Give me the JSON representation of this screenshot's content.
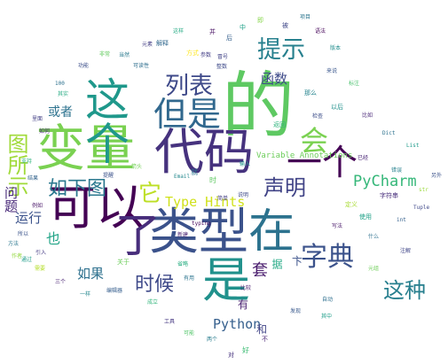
{
  "words": [
    {
      "text": "的",
      "color": "#5ec962"
    },
    {
      "text": "变量",
      "color": "#7ad151"
    },
    {
      "text": "代码",
      "color": "#46327e"
    },
    {
      "text": "可以",
      "color": "#440154"
    },
    {
      "text": "类型",
      "color": "#3b528b"
    },
    {
      "text": "在",
      "color": "#2c728e"
    },
    {
      "text": "是",
      "color": "#21918c"
    },
    {
      "text": "了",
      "color": "#472d7b"
    },
    {
      "text": "这个",
      "color": "#1f988b"
    },
    {
      "text": "一个",
      "color": "#440154"
    },
    {
      "text": "但是",
      "color": "#31688e"
    },
    {
      "text": "提示",
      "color": "#27808e"
    },
    {
      "text": "会",
      "color": "#7ad151"
    },
    {
      "text": "列表",
      "color": "#3e4989"
    },
    {
      "text": "图所示",
      "color": "#a0da39"
    },
    {
      "text": "字典",
      "color": "#3b528b"
    },
    {
      "text": "如下图",
      "color": "#2a788e"
    },
    {
      "text": "它",
      "color": "#bddf26"
    },
    {
      "text": "声明",
      "color": "#414487"
    },
    {
      "text": "PyCharm",
      "color": "#35b779"
    },
    {
      "text": "Type Hints",
      "color": "#d0e11c"
    },
    {
      "text": "这种",
      "color": "#277f8e"
    },
    {
      "text": "时候",
      "color": "#3e4989"
    },
    {
      "text": "Python",
      "color": "#355f8d"
    },
    {
      "text": "套",
      "color": "#481a6c"
    },
    {
      "text": "函数",
      "color": "#3e4a89"
    },
    {
      "text": "或者",
      "color": "#2c728e"
    },
    {
      "text": "问题",
      "color": "#472878"
    },
    {
      "text": "运行",
      "color": "#3b528b"
    },
    {
      "text": "也",
      "color": "#20a386"
    },
    {
      "text": "如果",
      "color": "#2d708e"
    },
    {
      "text": "有",
      "color": "#481f70"
    },
    {
      "text": "和",
      "color": "#414487"
    },
    {
      "text": "Variable Annotations",
      "color": "#6ccd5a"
    },
    {
      "text": "卞",
      "color": "#3b528b"
    },
    {
      "text": "据",
      "color": "#22a884"
    },
    {
      "text": "关于",
      "color": "#6ccd5a"
    },
    {
      "text": "解释",
      "color": "#31688e"
    },
    {
      "text": "方式",
      "color": "#fde725"
    },
    {
      "text": "字符串",
      "color": "#472d7b"
    },
    {
      "text": "比较",
      "color": "#481b6d"
    },
    {
      "text": "就",
      "color": "#2a768e"
    },
    {
      "text": "那么",
      "color": "#25848e"
    },
    {
      "text": "以后",
      "color": "#21918c"
    },
    {
      "text": "整数",
      "color": "#3e4a89"
    },
    {
      "text": "参数",
      "color": "#433e85"
    },
    {
      "text": "返回",
      "color": "#2fb47c"
    },
    {
      "text": "检查",
      "color": "#3d4e8a"
    },
    {
      "text": "错误",
      "color": "#26818e"
    },
    {
      "text": "定义",
      "color": "#a8db34"
    },
    {
      "text": "使用",
      "color": "#1fa187"
    },
    {
      "text": "写法",
      "color": "#48186a"
    },
    {
      "text": "什么",
      "color": "#2d708e"
    },
    {
      "text": "注解",
      "color": "#404688"
    },
    {
      "text": "元组",
      "color": "#6ece58"
    },
    {
      "text": "自动",
      "color": "#2e6f8e"
    },
    {
      "text": "发现",
      "color": "#38598c"
    },
    {
      "text": "其中",
      "color": "#1f9e89"
    },
    {
      "text": "不",
      "color": "#482475"
    },
    {
      "text": "好",
      "color": "#3dbc74"
    },
    {
      "text": "对",
      "color": "#46327e"
    },
    {
      "text": "两个",
      "color": "#287c8e"
    },
    {
      "text": "可能",
      "color": "#52c569"
    },
    {
      "text": "工具",
      "color": "#453781"
    },
    {
      "text": "成立",
      "color": "#31b57b"
    },
    {
      "text": "编辑器",
      "color": "#355e8d"
    },
    {
      "text": "一样",
      "color": "#24878e"
    },
    {
      "text": "三个",
      "color": "#482173"
    },
    {
      "text": "需要",
      "color": "#b5de2b"
    },
    {
      "text": "引入",
      "color": "#443b84"
    },
    {
      "text": "方法",
      "color": "#2a778e"
    },
    {
      "text": "所以",
      "color": "#3a538b"
    },
    {
      "text": "通过",
      "color": "#1e9c89"
    },
    {
      "text": "作者",
      "color": "#94d840"
    },
    {
      "text": "例如",
      "color": "#481668"
    },
    {
      "text": "结果",
      "color": "#33638d"
    },
    {
      "text": "支持",
      "color": "#2eb37c"
    },
    {
      "text": "里面",
      "color": "#423f85"
    },
    {
      "text": "其实",
      "color": "#25ab82"
    },
    {
      "text": "如何",
      "color": "#482979"
    },
    {
      "text": "功能",
      "color": "#3c4f8a"
    },
    {
      "text": "非常",
      "color": "#63cb5f"
    },
    {
      "text": "当然",
      "color": "#29798e"
    },
    {
      "text": "可读性",
      "color": "#2e6e8e"
    },
    {
      "text": "元素",
      "color": "#433d84"
    },
    {
      "text": "这样",
      "color": "#24aa83"
    },
    {
      "text": "并",
      "color": "#471063"
    },
    {
      "text": "后",
      "color": "#35608d"
    },
    {
      "text": "中",
      "color": "#1fa088"
    },
    {
      "text": "即",
      "color": "#86d549"
    },
    {
      "text": "被",
      "color": "#3f4788"
    },
    {
      "text": "项目",
      "color": "#2b758e"
    },
    {
      "text": "语法",
      "color": "#450559"
    },
    {
      "text": "版本",
      "color": "#228d8d"
    },
    {
      "text": "来说",
      "color": "#39568c"
    },
    {
      "text": "标注",
      "color": "#4ac16d"
    },
    {
      "text": "比如",
      "color": "#482677"
    },
    {
      "text": "Dict",
      "color": "#2c718e"
    },
    {
      "text": "List",
      "color": "#1e9b8a"
    },
    {
      "text": "Tuple",
      "color": "#3f4889"
    },
    {
      "text": "str",
      "color": "#9bd93c"
    },
    {
      "text": "int",
      "color": "#34608d"
    },
    {
      "text": "typing",
      "color": "#460a5d"
    },
    {
      "text": "100",
      "color": "#2d718e"
    },
    {
      "text": "Email",
      "color": "#23888e"
    },
    {
      "text": "冒号",
      "color": "#414287"
    },
    {
      "text": "箭头",
      "color": "#73d056"
    },
    {
      "text": "提醒",
      "color": "#3b528b"
    },
    {
      "text": "新建",
      "color": "#481f70"
    },
    {
      "text": "省略",
      "color": "#27ad81"
    },
    {
      "text": "有用",
      "color": "#2b748e"
    },
    {
      "text": "简单",
      "color": "#433e85"
    },
    {
      "text": "时",
      "color": "#5ec962"
    },
    {
      "text": "说明",
      "color": "#3e4989"
    },
    {
      "text": "输入",
      "color": "#1f968b"
    },
    {
      "text": "已经",
      "color": "#482475"
    },
    {
      "text": "另外",
      "color": "#3b528b"
    }
  ]
}
